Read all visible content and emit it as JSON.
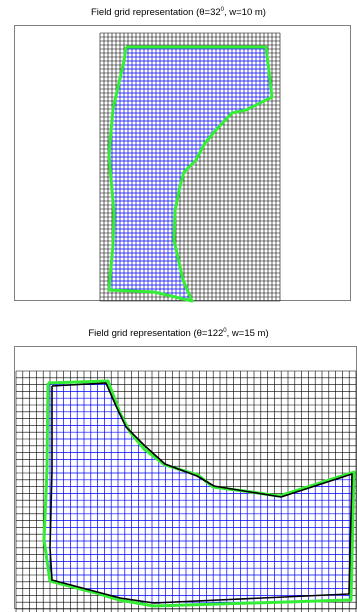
{
  "panels": [
    {
      "title_prefix": "Field grid representation (θ=32",
      "title_sup": "0",
      "title_suffix": ", w=10 m)",
      "colors": {
        "frame": "#808080",
        "grid": "#000000",
        "fill_grid": "#0000ff",
        "boundary": "#33ee33"
      }
    },
    {
      "title_prefix": "Field grid representation (θ=122",
      "title_sup": "0",
      "title_suffix": ", w=15 m)",
      "colors": {
        "frame": "#808080",
        "grid": "#000000",
        "fill_grid": "#0000ff",
        "boundary": "#33ee33",
        "true_boundary": "#000000"
      }
    }
  ]
}
